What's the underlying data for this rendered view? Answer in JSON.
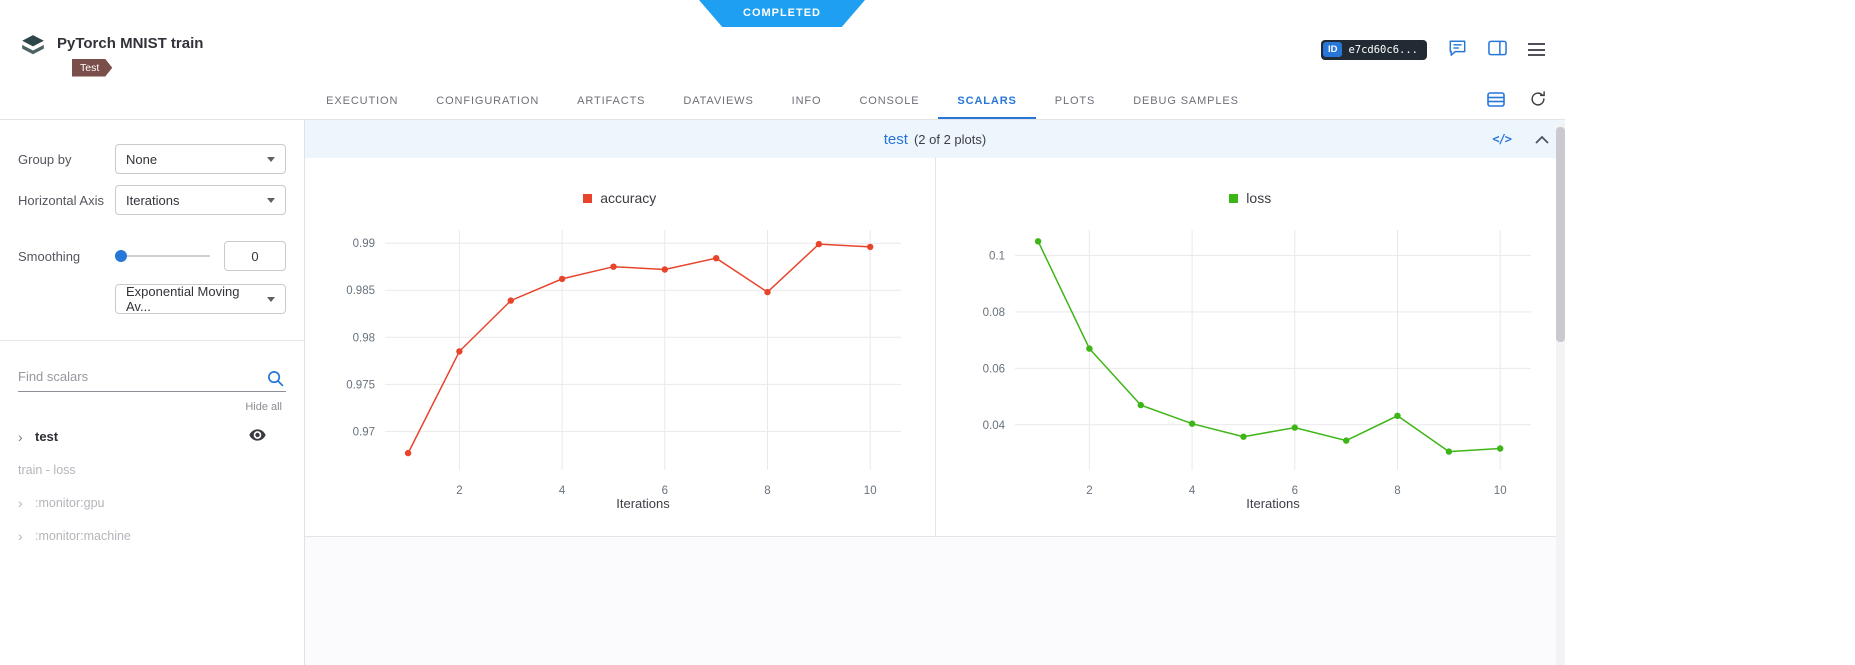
{
  "colors": {
    "accent": "#2777d9",
    "ribbon": "#1e9ff2",
    "tag": "#7a4e4a",
    "accuracy_series": "#e8442c",
    "loss_series": "#3eb516"
  },
  "ribbon": {
    "label": "COMPLETED"
  },
  "header": {
    "title": "PyTorch MNIST train",
    "tag": "Test",
    "id_label": "ID",
    "id_value": "e7cd60c6..."
  },
  "tabs": {
    "items": [
      {
        "label": "EXECUTION",
        "active": false
      },
      {
        "label": "CONFIGURATION",
        "active": false
      },
      {
        "label": "ARTIFACTS",
        "active": false
      },
      {
        "label": "DATAVIEWS",
        "active": false
      },
      {
        "label": "INFO",
        "active": false
      },
      {
        "label": "CONSOLE",
        "active": false
      },
      {
        "label": "SCALARS",
        "active": true
      },
      {
        "label": "PLOTS",
        "active": false
      },
      {
        "label": "DEBUG SAMPLES",
        "active": false
      }
    ]
  },
  "sidebar": {
    "group_by_label": "Group by",
    "group_by_value": "None",
    "horizontal_axis_label": "Horizontal Axis",
    "horizontal_axis_value": "Iterations",
    "smoothing_label": "Smoothing",
    "smoothing_value": "0",
    "smoothing_algorithm": "Exponential Moving Av...",
    "search_placeholder": "Find scalars",
    "hide_all_label": "Hide all",
    "tree": [
      {
        "label": "test"
      },
      {
        "label": "train - loss"
      },
      {
        "label": ":monitor:gpu"
      },
      {
        "label": ":monitor:machine"
      }
    ]
  },
  "main": {
    "group_title": "test",
    "group_count": "(2 of 2 plots)"
  },
  "chart_data": [
    {
      "type": "line",
      "name": "accuracy",
      "color": "#e8442c",
      "x": [
        1,
        2,
        3,
        4,
        5,
        6,
        7,
        8,
        9,
        10
      ],
      "values": [
        0.9677,
        0.9785,
        0.9839,
        0.9862,
        0.9875,
        0.9872,
        0.9884,
        0.9848,
        0.9899,
        0.9896
      ],
      "xlabel": "Iterations",
      "x_ticks": [
        "2",
        "4",
        "6",
        "8",
        "10"
      ],
      "y_ticks": [
        "0.97",
        "0.975",
        "0.98",
        "0.985",
        "0.99"
      ],
      "xlim": [
        0.55,
        10.6
      ],
      "ylim": [
        0.9659,
        0.9914
      ],
      "grid": true,
      "legend_position": "top-center"
    },
    {
      "type": "line",
      "name": "loss",
      "color": "#3eb516",
      "x": [
        1,
        2,
        3,
        4,
        5,
        6,
        7,
        8,
        9,
        10
      ],
      "values": [
        0.105,
        0.067,
        0.047,
        0.0404,
        0.0358,
        0.039,
        0.0344,
        0.0432,
        0.0305,
        0.0316
      ],
      "xlabel": "Iterations",
      "x_ticks": [
        "2",
        "4",
        "6",
        "8",
        "10"
      ],
      "y_ticks": [
        "0.04",
        "0.06",
        "0.08",
        "0.1"
      ],
      "xlim": [
        0.55,
        10.6
      ],
      "ylim": [
        0.024,
        0.109
      ],
      "grid": true,
      "legend_position": "top-center"
    }
  ]
}
